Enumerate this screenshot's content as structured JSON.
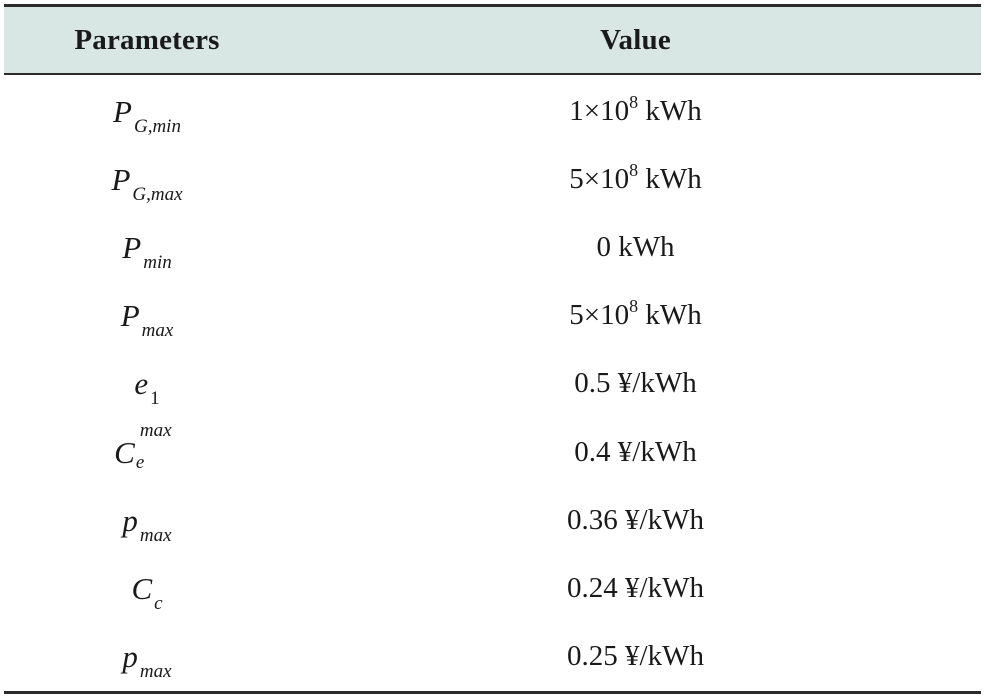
{
  "table": {
    "headers": {
      "parameter": "Parameters",
      "value": "Value"
    },
    "rows": [
      {
        "symbol": "P",
        "sub": "G,min",
        "value_mantissa": "1×10",
        "value_exp": "8",
        "value_unit": " kWh"
      },
      {
        "symbol": "P",
        "sub": "G,max",
        "value_mantissa": "5×10",
        "value_exp": "8",
        "value_unit": " kWh"
      },
      {
        "symbol": "P",
        "sub": "min",
        "value": "0 kWh"
      },
      {
        "symbol": "P",
        "sub": "max",
        "value_mantissa": "5×10",
        "value_exp": "8",
        "value_unit": " kWh"
      },
      {
        "symbol": "e",
        "sub": "1",
        "value": "0.5 ¥/kWh"
      },
      {
        "symbol": "C",
        "sub": "e",
        "sup": "max",
        "value": "0.4 ¥/kWh"
      },
      {
        "symbol": "p",
        "sub": "max",
        "value": "0.36 ¥/kWh"
      },
      {
        "symbol": "C",
        "sub": "c",
        "value": "0.24 ¥/kWh"
      },
      {
        "symbol": "p",
        "sub": "max",
        "value": "0.25 ¥/kWh"
      }
    ]
  },
  "colors": {
    "header_bg": "#d9e7e4",
    "rule": "#2b2b2b"
  }
}
